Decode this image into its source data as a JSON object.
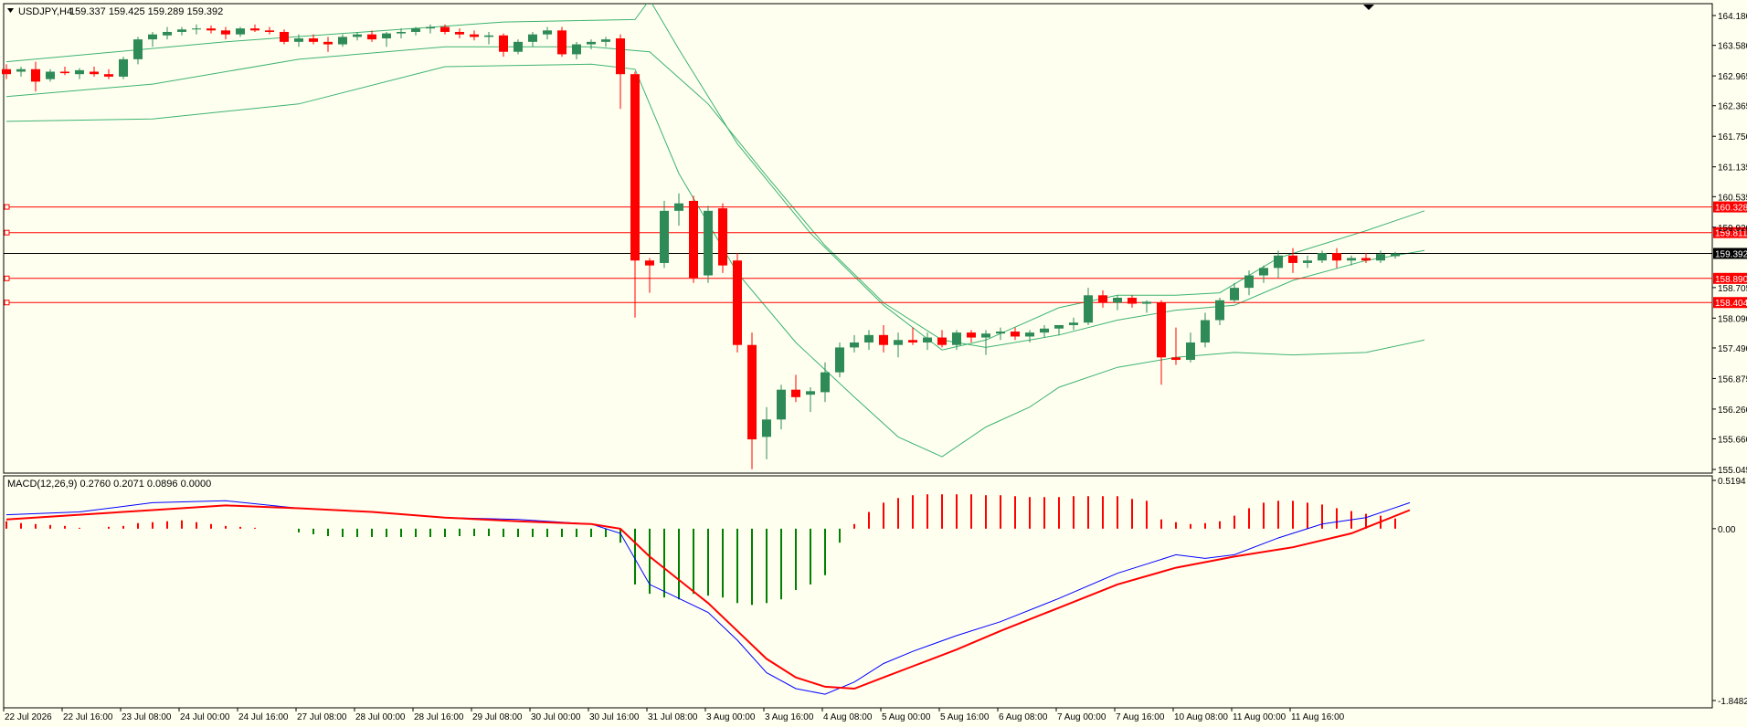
{
  "colors": {
    "background": "#fffff0",
    "bull_candle": "#2e8b57",
    "bear_candle": "#ff0000",
    "bands": "#3cb371",
    "level_line": "#ff0000",
    "current_price_line": "#000000",
    "macd_line": "#0000ff",
    "signal_line": "#ff0000",
    "hist_positive": "#ff0000",
    "hist_negative": "#008000"
  },
  "chart_data": [
    {
      "type": "candlestick",
      "title": "USDJPY,H4",
      "header": {
        "symbol": "USDJPY,H4",
        "ohlc": "159.337 159.425 159.289 159.392"
      },
      "y_ticks": [
        "164.180",
        "163.580",
        "162.965",
        "162.365",
        "161.750",
        "161.135",
        "160.535",
        "159.920",
        "158.705",
        "158.090",
        "157.490",
        "156.875",
        "156.260",
        "155.660",
        "155.045"
      ],
      "ylim": [
        155.045,
        164.18
      ],
      "levels": [
        "160.328",
        "159.811",
        "158.890",
        "158.404"
      ],
      "current_price": "159.392",
      "x_labels": [
        "22 Jul 2026",
        "22 Jul 16:00",
        "23 Jul 08:00",
        "24 Jul 00:00",
        "24 Jul 16:00",
        "27 Jul 08:00",
        "28 Jul 00:00",
        "28 Jul 16:00",
        "29 Jul 08:00",
        "30 Jul 00:00",
        "30 Jul 16:00",
        "31 Jul 08:00",
        "3 Aug 00:00",
        "3 Aug 16:00",
        "4 Aug 08:00",
        "5 Aug 00:00",
        "5 Aug 16:00",
        "6 Aug 08:00",
        "7 Aug 00:00",
        "7 Aug 16:00",
        "10 Aug 08:00",
        "11 Aug 00:00",
        "11 Aug 16:00"
      ],
      "candles": [
        [
          163.1,
          163.2,
          162.9,
          163.0
        ],
        [
          163.05,
          163.15,
          162.95,
          163.1
        ],
        [
          163.1,
          163.25,
          162.65,
          162.85
        ],
        [
          162.9,
          163.1,
          162.85,
          163.05
        ],
        [
          163.05,
          163.15,
          162.98,
          163.02
        ],
        [
          163.0,
          163.12,
          162.9,
          163.08
        ],
        [
          163.05,
          163.15,
          162.95,
          163.0
        ],
        [
          163.0,
          163.1,
          162.9,
          162.95
        ],
        [
          162.95,
          163.35,
          162.9,
          163.3
        ],
        [
          163.3,
          163.75,
          163.2,
          163.7
        ],
        [
          163.7,
          163.85,
          163.55,
          163.8
        ],
        [
          163.78,
          163.95,
          163.7,
          163.85
        ],
        [
          163.85,
          163.95,
          163.78,
          163.9
        ],
        [
          163.9,
          164.0,
          163.8,
          163.92
        ],
        [
          163.92,
          163.98,
          163.82,
          163.88
        ],
        [
          163.88,
          163.95,
          163.7,
          163.8
        ],
        [
          163.8,
          163.95,
          163.75,
          163.92
        ],
        [
          163.92,
          164.0,
          163.85,
          163.88
        ],
        [
          163.88,
          163.95,
          163.8,
          163.85
        ],
        [
          163.85,
          163.9,
          163.6,
          163.65
        ],
        [
          163.65,
          163.8,
          163.55,
          163.72
        ],
        [
          163.72,
          163.8,
          163.6,
          163.65
        ],
        [
          163.65,
          163.75,
          163.45,
          163.6
        ],
        [
          163.6,
          163.8,
          163.55,
          163.75
        ],
        [
          163.75,
          163.85,
          163.68,
          163.8
        ],
        [
          163.8,
          163.88,
          163.65,
          163.7
        ],
        [
          163.72,
          163.85,
          163.55,
          163.82
        ],
        [
          163.82,
          163.92,
          163.72,
          163.85
        ],
        [
          163.85,
          163.95,
          163.78,
          163.92
        ],
        [
          163.92,
          164.0,
          163.82,
          163.95
        ],
        [
          163.95,
          164.0,
          163.8,
          163.85
        ],
        [
          163.85,
          163.92,
          163.72,
          163.8
        ],
        [
          163.8,
          163.88,
          163.68,
          163.75
        ],
        [
          163.75,
          163.85,
          163.6,
          163.78
        ],
        [
          163.78,
          163.82,
          163.35,
          163.45
        ],
        [
          163.45,
          163.7,
          163.4,
          163.65
        ],
        [
          163.65,
          163.85,
          163.55,
          163.8
        ],
        [
          163.8,
          163.95,
          163.7,
          163.88
        ],
        [
          163.88,
          163.95,
          163.35,
          163.4
        ],
        [
          163.4,
          163.65,
          163.3,
          163.6
        ],
        [
          163.6,
          163.7,
          163.5,
          163.65
        ],
        [
          163.65,
          163.75,
          163.55,
          163.7
        ],
        [
          163.72,
          163.8,
          162.3,
          163.0
        ],
        [
          163.0,
          163.05,
          158.1,
          159.25
        ],
        [
          159.25,
          159.3,
          158.6,
          159.15
        ],
        [
          159.2,
          160.45,
          159.1,
          160.25
        ],
        [
          160.25,
          160.6,
          159.95,
          160.4
        ],
        [
          160.45,
          160.55,
          158.8,
          158.9
        ],
        [
          158.95,
          160.35,
          158.8,
          160.25
        ],
        [
          160.3,
          160.4,
          159.0,
          159.15
        ],
        [
          159.25,
          159.4,
          157.4,
          157.55
        ],
        [
          157.55,
          157.8,
          155.05,
          155.65
        ],
        [
          155.7,
          156.3,
          155.25,
          156.05
        ],
        [
          156.05,
          156.75,
          155.85,
          156.65
        ],
        [
          156.65,
          156.95,
          156.4,
          156.5
        ],
        [
          156.55,
          156.7,
          156.2,
          156.62
        ],
        [
          156.6,
          157.2,
          156.4,
          157.0
        ],
        [
          157.0,
          157.6,
          156.9,
          157.5
        ],
        [
          157.5,
          157.75,
          157.4,
          157.6
        ],
        [
          157.6,
          157.85,
          157.45,
          157.75
        ],
        [
          157.75,
          157.95,
          157.4,
          157.55
        ],
        [
          157.55,
          157.8,
          157.3,
          157.65
        ],
        [
          157.65,
          157.9,
          157.55,
          157.6
        ],
        [
          157.6,
          157.8,
          157.45,
          157.7
        ],
        [
          157.7,
          157.85,
          157.5,
          157.55
        ],
        [
          157.55,
          157.85,
          157.45,
          157.8
        ],
        [
          157.8,
          157.85,
          157.6,
          157.7
        ],
        [
          157.7,
          157.85,
          157.35,
          157.78
        ],
        [
          157.78,
          157.9,
          157.65,
          157.82
        ],
        [
          157.82,
          157.9,
          157.65,
          157.72
        ],
        [
          157.72,
          157.85,
          157.6,
          157.8
        ],
        [
          157.8,
          157.95,
          157.7,
          157.88
        ],
        [
          157.88,
          157.95,
          157.75,
          157.95
        ],
        [
          157.95,
          158.1,
          157.85,
          158.0
        ],
        [
          158.0,
          158.7,
          157.95,
          158.55
        ],
        [
          158.55,
          158.65,
          158.3,
          158.4
        ],
        [
          158.4,
          158.55,
          158.25,
          158.5
        ],
        [
          158.5,
          158.55,
          158.3,
          158.38
        ],
        [
          158.38,
          158.45,
          158.2,
          158.42
        ],
        [
          158.4,
          158.45,
          156.75,
          157.3
        ],
        [
          157.3,
          157.9,
          157.15,
          157.25
        ],
        [
          157.25,
          157.8,
          157.2,
          157.6
        ],
        [
          157.6,
          158.2,
          157.5,
          158.05
        ],
        [
          158.05,
          158.5,
          157.95,
          158.45
        ],
        [
          158.45,
          158.8,
          158.4,
          158.7
        ],
        [
          158.7,
          159.05,
          158.55,
          158.95
        ],
        [
          158.95,
          159.15,
          158.8,
          159.1
        ],
        [
          159.1,
          159.45,
          158.9,
          159.35
        ],
        [
          159.35,
          159.5,
          159.0,
          159.2
        ],
        [
          159.2,
          159.35,
          159.1,
          159.25
        ],
        [
          159.25,
          159.45,
          159.2,
          159.4
        ],
        [
          159.4,
          159.5,
          159.1,
          159.25
        ],
        [
          159.25,
          159.35,
          159.15,
          159.3
        ],
        [
          159.3,
          159.4,
          159.2,
          159.25
        ],
        [
          159.25,
          159.45,
          159.2,
          159.38
        ],
        [
          159.337,
          159.425,
          159.289,
          159.392
        ]
      ],
      "bollinger": {
        "upper": [
          [
            0,
            163.25
          ],
          [
            15,
            163.65
          ],
          [
            34,
            164.05
          ],
          [
            43,
            164.1
          ],
          [
            44,
            164.5
          ],
          [
            46,
            163.5
          ],
          [
            50,
            161.6
          ],
          [
            55,
            159.8
          ],
          [
            60,
            158.35
          ],
          [
            64,
            157.45
          ],
          [
            67,
            157.65
          ],
          [
            72,
            158.3
          ],
          [
            76,
            158.55
          ],
          [
            80,
            158.55
          ],
          [
            83,
            158.6
          ],
          [
            87,
            159.3
          ],
          [
            93,
            159.85
          ],
          [
            97,
            160.25
          ]
        ],
        "middle": [
          [
            0,
            162.55
          ],
          [
            10,
            162.8
          ],
          [
            20,
            163.3
          ],
          [
            30,
            163.55
          ],
          [
            40,
            163.55
          ],
          [
            44,
            163.45
          ],
          [
            48,
            162.4
          ],
          [
            52,
            160.95
          ],
          [
            56,
            159.55
          ],
          [
            60,
            158.4
          ],
          [
            64,
            157.65
          ],
          [
            67,
            157.5
          ],
          [
            72,
            157.75
          ],
          [
            76,
            158.05
          ],
          [
            80,
            158.25
          ],
          [
            84,
            158.35
          ],
          [
            88,
            158.85
          ],
          [
            93,
            159.25
          ],
          [
            97,
            159.45
          ]
        ],
        "lower": [
          [
            0,
            162.05
          ],
          [
            10,
            162.1
          ],
          [
            20,
            162.4
          ],
          [
            30,
            163.15
          ],
          [
            40,
            163.2
          ],
          [
            43,
            163.1
          ],
          [
            46,
            161.0
          ],
          [
            50,
            159.0
          ],
          [
            54,
            157.6
          ],
          [
            58,
            156.5
          ],
          [
            61,
            155.7
          ],
          [
            64,
            155.3
          ],
          [
            67,
            155.9
          ],
          [
            70,
            156.3
          ],
          [
            72,
            156.7
          ],
          [
            76,
            157.1
          ],
          [
            80,
            157.3
          ],
          [
            84,
            157.4
          ],
          [
            88,
            157.35
          ],
          [
            93,
            157.4
          ],
          [
            97,
            157.65
          ]
        ]
      }
    },
    {
      "type": "macd",
      "title": "MACD(12,26,9) 0.2760 0.2071 0.0896 0.0000",
      "y_ticks": [
        "0.5194",
        "0.00",
        "-1.8482"
      ],
      "ylim": [
        -1.8482,
        0.5194
      ],
      "macd_line": [
        [
          0,
          0.15
        ],
        [
          5,
          0.18
        ],
        [
          10,
          0.28
        ],
        [
          15,
          0.3
        ],
        [
          20,
          0.22
        ],
        [
          25,
          0.18
        ],
        [
          30,
          0.12
        ],
        [
          35,
          0.1
        ],
        [
          40,
          0.05
        ],
        [
          42,
          -0.05
        ],
        [
          44,
          -0.6
        ],
        [
          46,
          -0.75
        ],
        [
          48,
          -0.9
        ],
        [
          50,
          -1.2
        ],
        [
          52,
          -1.55
        ],
        [
          54,
          -1.72
        ],
        [
          56,
          -1.78
        ],
        [
          58,
          -1.65
        ],
        [
          60,
          -1.45
        ],
        [
          62,
          -1.32
        ],
        [
          65,
          -1.15
        ],
        [
          68,
          -1.0
        ],
        [
          72,
          -0.75
        ],
        [
          76,
          -0.48
        ],
        [
          80,
          -0.28
        ],
        [
          82,
          -0.32
        ],
        [
          84,
          -0.28
        ],
        [
          87,
          -0.1
        ],
        [
          90,
          0.05
        ],
        [
          93,
          0.12
        ],
        [
          96,
          0.28
        ]
      ],
      "signal_line": [
        [
          0,
          0.1
        ],
        [
          5,
          0.15
        ],
        [
          10,
          0.2
        ],
        [
          15,
          0.25
        ],
        [
          20,
          0.22
        ],
        [
          25,
          0.18
        ],
        [
          30,
          0.12
        ],
        [
          35,
          0.08
        ],
        [
          40,
          0.05
        ],
        [
          42,
          0.0
        ],
        [
          44,
          -0.3
        ],
        [
          46,
          -0.55
        ],
        [
          48,
          -0.8
        ],
        [
          50,
          -1.1
        ],
        [
          52,
          -1.4
        ],
        [
          54,
          -1.6
        ],
        [
          56,
          -1.7
        ],
        [
          58,
          -1.72
        ],
        [
          60,
          -1.6
        ],
        [
          62,
          -1.48
        ],
        [
          65,
          -1.3
        ],
        [
          68,
          -1.1
        ],
        [
          72,
          -0.85
        ],
        [
          76,
          -0.6
        ],
        [
          80,
          -0.42
        ],
        [
          84,
          -0.3
        ],
        [
          88,
          -0.2
        ],
        [
          92,
          -0.05
        ],
        [
          96,
          0.2
        ]
      ],
      "histogram": [
        0.08,
        0.06,
        0.05,
        0.04,
        0.03,
        0.01,
        0.0,
        0.02,
        0.03,
        0.06,
        0.07,
        0.08,
        0.09,
        0.07,
        0.05,
        0.03,
        0.02,
        0.01,
        0.0,
        0.0,
        -0.04,
        -0.06,
        -0.08,
        -0.09,
        -0.09,
        -0.09,
        -0.09,
        -0.09,
        -0.09,
        -0.09,
        -0.09,
        -0.08,
        -0.08,
        -0.08,
        -0.09,
        -0.09,
        -0.09,
        -0.09,
        -0.09,
        -0.09,
        -0.09,
        -0.09,
        -0.15,
        -0.6,
        -0.7,
        -0.74,
        -0.76,
        -0.7,
        -0.72,
        -0.74,
        -0.8,
        -0.82,
        -0.8,
        -0.76,
        -0.66,
        -0.6,
        -0.5,
        -0.15,
        0.05,
        0.18,
        0.28,
        0.33,
        0.36,
        0.37,
        0.37,
        0.37,
        0.37,
        0.36,
        0.36,
        0.35,
        0.34,
        0.34,
        0.34,
        0.35,
        0.35,
        0.35,
        0.35,
        0.32,
        0.3,
        0.1,
        0.07,
        0.05,
        0.06,
        0.08,
        0.14,
        0.22,
        0.28,
        0.3,
        0.3,
        0.28,
        0.26,
        0.22,
        0.19,
        0.16,
        0.14,
        0.11
      ]
    }
  ]
}
